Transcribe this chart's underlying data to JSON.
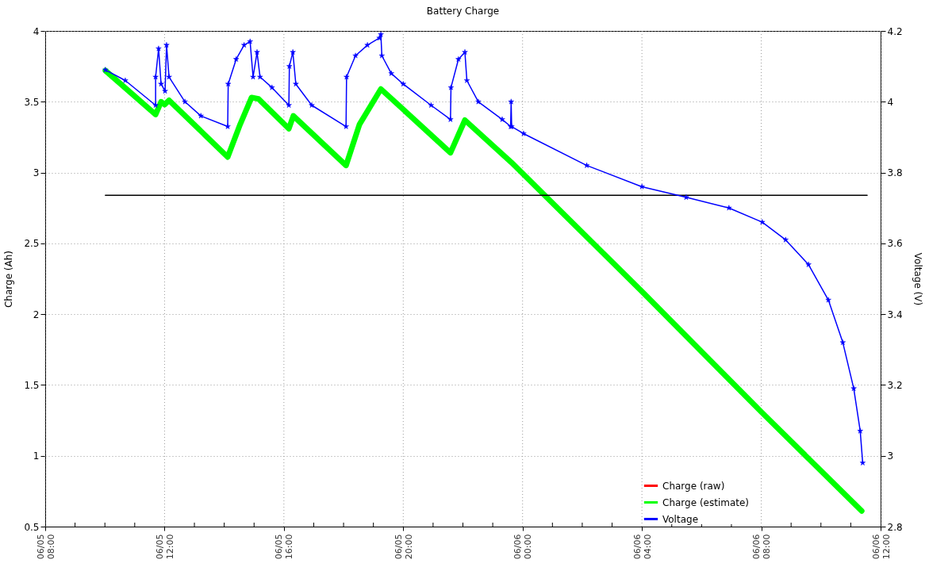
{
  "chart_data": {
    "type": "line",
    "title": "Battery Charge",
    "ylabel": "Charge (Ah)",
    "y2label": "Voltage (V)",
    "xlim": [
      "--06-05T08:00",
      "--06-06T12:00"
    ],
    "xticks": [
      {
        "value": "--06-05T08:00",
        "label": "06/05\n08:00"
      },
      {
        "value": "--06-05T09:00",
        "label": null
      },
      {
        "value": "--06-05T10:00",
        "label": null
      },
      {
        "value": "--06-05T11:00",
        "label": null
      },
      {
        "value": "--06-05T12:00",
        "label": "06/05\n12:00"
      },
      {
        "value": "--06-05T13:00",
        "label": null
      },
      {
        "value": "--06-05T14:00",
        "label": null
      },
      {
        "value": "--06-05T15:00",
        "label": null
      },
      {
        "value": "--06-05T16:00",
        "label": "06/05\n16:00"
      },
      {
        "value": "--06-05T17:00",
        "label": null
      },
      {
        "value": "--06-05T18:00",
        "label": null
      },
      {
        "value": "--06-05T19:00",
        "label": null
      },
      {
        "value": "--06-05T20:00",
        "label": "06/05\n20:00"
      },
      {
        "value": "--06-05T21:00",
        "label": null
      },
      {
        "value": "--06-05T22:00",
        "label": null
      },
      {
        "value": "--06-05T23:00",
        "label": null
      },
      {
        "value": "--06-06T00:00",
        "label": "06/06\n00:00"
      },
      {
        "value": "--06-06T01:00",
        "label": null
      },
      {
        "value": "--06-06T02:00",
        "label": null
      },
      {
        "value": "--06-06T03:00",
        "label": null
      },
      {
        "value": "--06-06T04:00",
        "label": "06/06\n04:00"
      },
      {
        "value": "--06-06T05:00",
        "label": null
      },
      {
        "value": "--06-06T06:00",
        "label": null
      },
      {
        "value": "--06-06T07:00",
        "label": null
      },
      {
        "value": "--06-06T08:00",
        "label": "06/06\n08:00"
      },
      {
        "value": "--06-06T09:00",
        "label": null
      },
      {
        "value": "--06-06T10:00",
        "label": null
      },
      {
        "value": "--06-06T11:00",
        "label": null
      },
      {
        "value": "--06-06T12:00",
        "label": "06/06\n12:00"
      }
    ],
    "ylim": [
      0.5,
      4
    ],
    "yticks": [
      0.5,
      1,
      1.5,
      2,
      2.5,
      3,
      3.5,
      4
    ],
    "y2lim": [
      2.8,
      4.2
    ],
    "y2ticks": [
      2.8,
      3,
      3.2,
      3.4,
      3.6,
      3.8,
      4,
      4.2
    ],
    "grid": true,
    "legend": "bottom right",
    "series": [
      {
        "name": "Charge (raw)",
        "color": "#ff0000",
        "marker": "cross"
      },
      {
        "name": "Charge (estimate)",
        "color": "#00ff00",
        "marker": "none",
        "x": [
          "--06-05T10:01",
          "--06-05T11:42",
          "--06-05T11:53",
          "--06-05T12:00",
          "--06-05T12:09",
          "--06-05T14:07",
          "--06-05T14:32",
          "--06-05T14:55",
          "--06-05T15:09",
          "--06-05T16:10",
          "--06-05T16:19",
          "--06-05T18:05",
          "--06-05T18:32",
          "--06-05T19:15",
          "--06-05T21:35",
          "--06-05T22:04",
          "--06-05T23:38",
          "--06-06T04:00",
          "--06-06T08:00",
          "--06-06T11:22"
        ],
        "values": [
          3.72,
          3.41,
          3.5,
          3.48,
          3.51,
          3.11,
          3.34,
          3.53,
          3.52,
          3.31,
          3.4,
          3.05,
          3.34,
          3.59,
          3.14,
          3.37,
          3.07,
          2.16,
          1.31,
          0.61
        ]
      },
      {
        "color": "#000000",
        "marker": "none",
        "x": [
          "--06-05T10:01",
          "--06-06T11:33"
        ],
        "values": [
          2.84,
          2.84
        ]
      },
      {
        "name": "Voltage",
        "color": "#0000ff",
        "marker": "star",
        "axis": "y2",
        "x": [
          "--06-05T10:01",
          "--06-05T10:41",
          "--06-05T11:42",
          "--06-05T11:42",
          "--06-05T11:48",
          "--06-05T11:53",
          "--06-05T12:01",
          "--06-05T12:04",
          "--06-05T12:09",
          "--06-05T12:41",
          "--06-05T13:13",
          "--06-05T14:07",
          "--06-05T14:08",
          "--06-05T14:24",
          "--06-05T14:40",
          "--06-05T14:52",
          "--06-05T14:58",
          "--06-05T15:06",
          "--06-05T15:12",
          "--06-05T15:36",
          "--06-05T16:10",
          "--06-05T16:11",
          "--06-05T16:18",
          "--06-05T16:24",
          "--06-05T16:56",
          "--06-05T18:05",
          "--06-05T18:06",
          "--06-05T18:24",
          "--06-05T18:48",
          "--06-05T19:12",
          "--06-05T19:15",
          "--06-05T19:17",
          "--06-05T19:36",
          "--06-05T20:00",
          "--06-05T20:56",
          "--06-05T21:35",
          "--06-05T21:36",
          "--06-05T21:51",
          "--06-05T22:04",
          "--06-05T22:08",
          "--06-05T22:31",
          "--06-05T23:19",
          "--06-05T23:36",
          "--06-05T23:37",
          "--06-05T23:38",
          "--06-06T00:02",
          "--06-06T02:09",
          "--06-06T04:00",
          "--06-06T05:29",
          "--06-06T06:55",
          "--06-06T08:02",
          "--06-06T08:49",
          "--06-06T09:35",
          "--06-06T10:15",
          "--06-06T10:44",
          "--06-06T11:06",
          "--06-06T11:19",
          "--06-06T11:24"
        ],
        "values": [
          4.09,
          4.06,
          3.99,
          4.07,
          4.15,
          4.05,
          4.03,
          4.16,
          4.07,
          4.0,
          3.96,
          3.93,
          4.05,
          4.12,
          4.16,
          4.17,
          4.07,
          4.14,
          4.07,
          4.04,
          3.99,
          4.1,
          4.14,
          4.05,
          3.99,
          3.93,
          4.07,
          4.13,
          4.16,
          4.18,
          4.19,
          4.13,
          4.08,
          4.05,
          3.99,
          3.95,
          4.04,
          4.12,
          4.14,
          4.06,
          4.0,
          3.95,
          3.93,
          4.0,
          3.93,
          3.91,
          3.82,
          3.76,
          3.73,
          3.7,
          3.66,
          3.61,
          3.54,
          3.44,
          3.32,
          3.19,
          3.07,
          2.98
        ]
      }
    ]
  }
}
